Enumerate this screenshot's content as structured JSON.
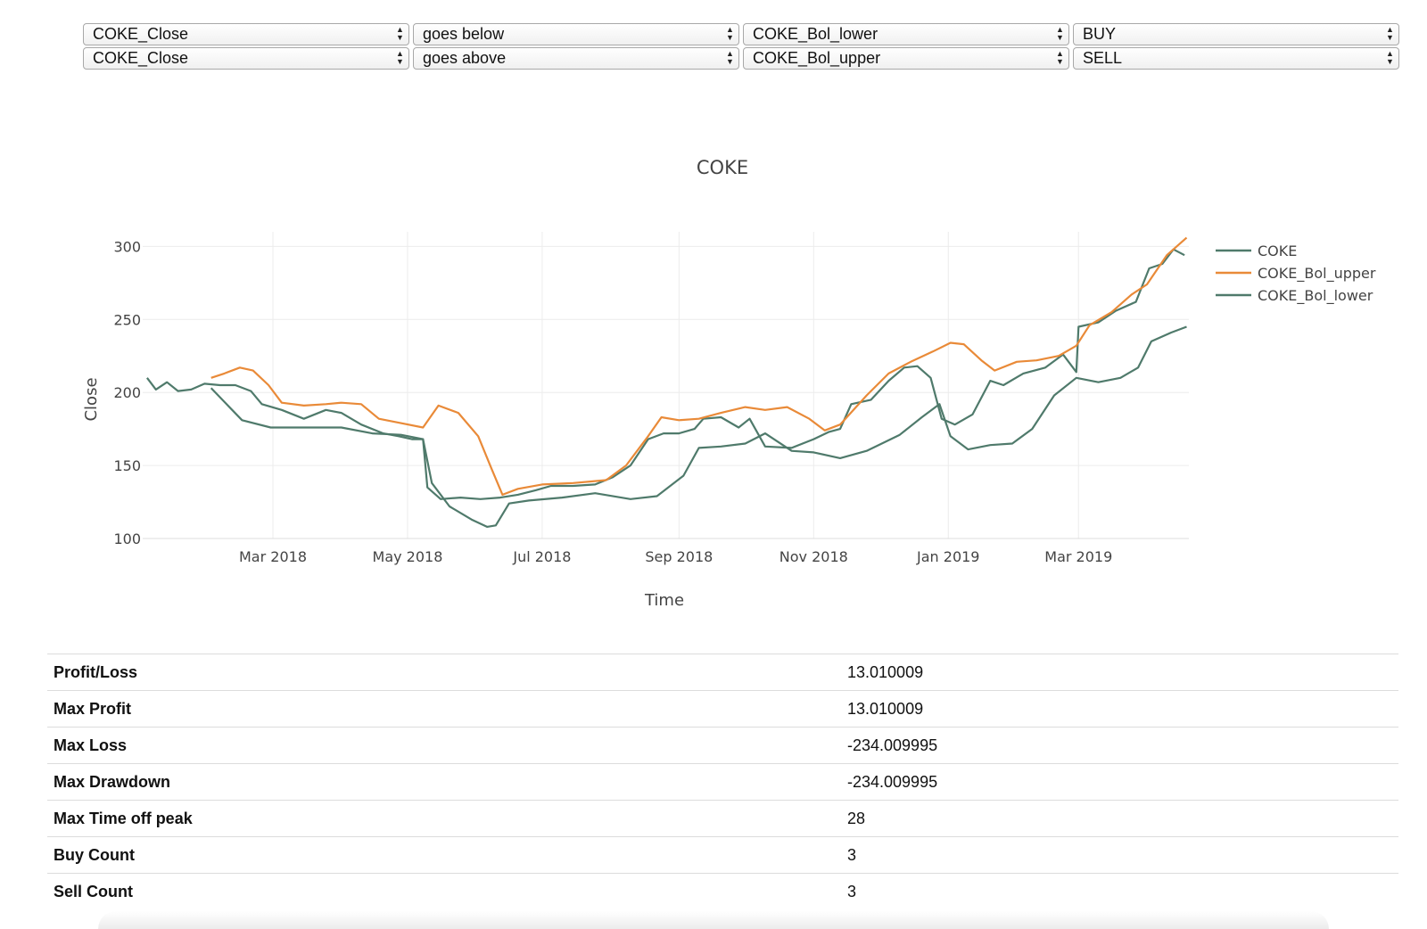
{
  "controls": {
    "rows": [
      [
        "COKE_Close",
        "goes below",
        "COKE_Bol_lower",
        "BUY"
      ],
      [
        "COKE_Close",
        "goes above",
        "COKE_Bol_upper",
        "SELL"
      ]
    ]
  },
  "stats": [
    {
      "label": "Profit/Loss",
      "value": "13.010009"
    },
    {
      "label": "Max Profit",
      "value": "13.010009"
    },
    {
      "label": "Max Loss",
      "value": "-234.009995"
    },
    {
      "label": "Max Drawdown",
      "value": "-234.009995"
    },
    {
      "label": "Max Time off peak",
      "value": "28"
    },
    {
      "label": "Buy Count",
      "value": "3"
    },
    {
      "label": "Sell Count",
      "value": "3"
    }
  ],
  "chart_data": {
    "type": "line",
    "title": "COKE",
    "xlabel": "Time",
    "ylabel": "Close",
    "xlim": [
      "2018-01-01",
      "2019-04-20"
    ],
    "ylim": [
      100,
      310
    ],
    "yticks": [
      100,
      150,
      200,
      250,
      300
    ],
    "xticks": [
      {
        "date": "2018-03-01",
        "label": "Mar 2018"
      },
      {
        "date": "2018-05-01",
        "label": "May 2018"
      },
      {
        "date": "2018-07-01",
        "label": "Jul 2018"
      },
      {
        "date": "2018-09-01",
        "label": "Sep 2018"
      },
      {
        "date": "2018-11-01",
        "label": "Nov 2018"
      },
      {
        "date": "2019-01-01",
        "label": "Jan 2019"
      },
      {
        "date": "2019-03-01",
        "label": "Mar 2019"
      }
    ],
    "grid": true,
    "legend_position": "top-right",
    "series": [
      {
        "name": "COKE",
        "color": "#4f7a6b",
        "points": [
          [
            "2018-01-03",
            210
          ],
          [
            "2018-01-07",
            202
          ],
          [
            "2018-01-12",
            207
          ],
          [
            "2018-01-17",
            201
          ],
          [
            "2018-01-23",
            202
          ],
          [
            "2018-01-29",
            206
          ],
          [
            "2018-02-05",
            205
          ],
          [
            "2018-02-12",
            205
          ],
          [
            "2018-02-19",
            201
          ],
          [
            "2018-02-24",
            192
          ],
          [
            "2018-03-05",
            188
          ],
          [
            "2018-03-15",
            182
          ],
          [
            "2018-03-25",
            188
          ],
          [
            "2018-04-01",
            186
          ],
          [
            "2018-04-10",
            178
          ],
          [
            "2018-04-20",
            172
          ],
          [
            "2018-04-27",
            170
          ],
          [
            "2018-05-03",
            168
          ],
          [
            "2018-05-08",
            168
          ],
          [
            "2018-05-10",
            135
          ],
          [
            "2018-05-16",
            127
          ],
          [
            "2018-05-25",
            128
          ],
          [
            "2018-06-03",
            127
          ],
          [
            "2018-06-12",
            128
          ],
          [
            "2018-06-20",
            130
          ],
          [
            "2018-06-28",
            133
          ],
          [
            "2018-07-05",
            136
          ],
          [
            "2018-07-15",
            136
          ],
          [
            "2018-07-25",
            137
          ],
          [
            "2018-08-02",
            142
          ],
          [
            "2018-08-10",
            150
          ],
          [
            "2018-08-18",
            168
          ],
          [
            "2018-08-25",
            172
          ],
          [
            "2018-09-01",
            172
          ],
          [
            "2018-09-08",
            175
          ],
          [
            "2018-09-12",
            182
          ],
          [
            "2018-09-20",
            183
          ],
          [
            "2018-09-28",
            176
          ],
          [
            "2018-10-03",
            182
          ],
          [
            "2018-10-10",
            163
          ],
          [
            "2018-10-22",
            162
          ],
          [
            "2018-11-01",
            168
          ],
          [
            "2018-11-08",
            173
          ],
          [
            "2018-11-13",
            175
          ],
          [
            "2018-11-18",
            192
          ],
          [
            "2018-11-27",
            195
          ],
          [
            "2018-12-05",
            208
          ],
          [
            "2018-12-12",
            217
          ],
          [
            "2018-12-18",
            218
          ],
          [
            "2018-12-24",
            210
          ],
          [
            "2018-12-29",
            182
          ],
          [
            "2019-01-04",
            178
          ],
          [
            "2019-01-12",
            185
          ],
          [
            "2019-01-20",
            208
          ],
          [
            "2019-01-26",
            205
          ],
          [
            "2019-02-04",
            213
          ],
          [
            "2019-02-14",
            217
          ],
          [
            "2019-02-22",
            226
          ],
          [
            "2019-02-28",
            214
          ],
          [
            "2019-03-01",
            245
          ],
          [
            "2019-03-10",
            248
          ],
          [
            "2019-03-18",
            256
          ],
          [
            "2019-03-27",
            262
          ],
          [
            "2019-04-02",
            285
          ],
          [
            "2019-04-08",
            288
          ],
          [
            "2019-04-13",
            298
          ],
          [
            "2019-04-18",
            294
          ]
        ]
      },
      {
        "name": "COKE_Bol_upper",
        "color": "#e98a38",
        "points": [
          [
            "2018-02-01",
            210
          ],
          [
            "2018-02-07",
            213
          ],
          [
            "2018-02-14",
            217
          ],
          [
            "2018-02-20",
            215
          ],
          [
            "2018-02-27",
            205
          ],
          [
            "2018-03-05",
            193
          ],
          [
            "2018-03-15",
            191
          ],
          [
            "2018-03-25",
            192
          ],
          [
            "2018-04-01",
            193
          ],
          [
            "2018-04-10",
            192
          ],
          [
            "2018-04-18",
            182
          ],
          [
            "2018-04-28",
            179
          ],
          [
            "2018-05-08",
            176
          ],
          [
            "2018-05-15",
            191
          ],
          [
            "2018-05-24",
            186
          ],
          [
            "2018-06-02",
            170
          ],
          [
            "2018-06-08",
            148
          ],
          [
            "2018-06-13",
            130
          ],
          [
            "2018-06-20",
            134
          ],
          [
            "2018-07-01",
            137
          ],
          [
            "2018-07-15",
            138
          ],
          [
            "2018-07-30",
            140
          ],
          [
            "2018-08-08",
            150
          ],
          [
            "2018-08-18",
            170
          ],
          [
            "2018-08-24",
            183
          ],
          [
            "2018-09-01",
            181
          ],
          [
            "2018-09-10",
            182
          ],
          [
            "2018-09-20",
            186
          ],
          [
            "2018-10-01",
            190
          ],
          [
            "2018-10-10",
            188
          ],
          [
            "2018-10-20",
            190
          ],
          [
            "2018-10-30",
            182
          ],
          [
            "2018-11-06",
            174
          ],
          [
            "2018-11-13",
            178
          ],
          [
            "2018-11-25",
            198
          ],
          [
            "2018-12-05",
            213
          ],
          [
            "2018-12-15",
            221
          ],
          [
            "2018-12-25",
            228
          ],
          [
            "2019-01-02",
            234
          ],
          [
            "2019-01-08",
            233
          ],
          [
            "2019-01-16",
            222
          ],
          [
            "2019-01-22",
            215
          ],
          [
            "2019-02-01",
            221
          ],
          [
            "2019-02-10",
            222
          ],
          [
            "2019-02-20",
            225
          ],
          [
            "2019-02-28",
            232
          ],
          [
            "2019-03-06",
            246
          ],
          [
            "2019-03-16",
            255
          ],
          [
            "2019-03-25",
            267
          ],
          [
            "2019-04-01",
            274
          ],
          [
            "2019-04-10",
            294
          ],
          [
            "2019-04-19",
            306
          ]
        ]
      },
      {
        "name": "COKE_Bol_lower",
        "color": "#4f7a6b",
        "points": [
          [
            "2018-02-01",
            203
          ],
          [
            "2018-02-08",
            192
          ],
          [
            "2018-02-15",
            181
          ],
          [
            "2018-02-28",
            176
          ],
          [
            "2018-03-08",
            176
          ],
          [
            "2018-03-20",
            176
          ],
          [
            "2018-04-01",
            176
          ],
          [
            "2018-04-15",
            172
          ],
          [
            "2018-04-28",
            171
          ],
          [
            "2018-05-08",
            168
          ],
          [
            "2018-05-12",
            138
          ],
          [
            "2018-05-20",
            122
          ],
          [
            "2018-05-30",
            113
          ],
          [
            "2018-06-06",
            108
          ],
          [
            "2018-06-10",
            109
          ],
          [
            "2018-06-16",
            124
          ],
          [
            "2018-06-25",
            126
          ],
          [
            "2018-07-10",
            128
          ],
          [
            "2018-07-25",
            131
          ],
          [
            "2018-08-10",
            127
          ],
          [
            "2018-08-22",
            129
          ],
          [
            "2018-09-03",
            143
          ],
          [
            "2018-09-10",
            162
          ],
          [
            "2018-09-20",
            163
          ],
          [
            "2018-10-01",
            165
          ],
          [
            "2018-10-10",
            172
          ],
          [
            "2018-10-22",
            160
          ],
          [
            "2018-11-01",
            159
          ],
          [
            "2018-11-13",
            155
          ],
          [
            "2018-11-25",
            160
          ],
          [
            "2018-12-10",
            171
          ],
          [
            "2018-12-20",
            183
          ],
          [
            "2018-12-28",
            192
          ],
          [
            "2019-01-02",
            170
          ],
          [
            "2019-01-10",
            161
          ],
          [
            "2019-01-20",
            164
          ],
          [
            "2019-01-30",
            165
          ],
          [
            "2019-02-08",
            175
          ],
          [
            "2019-02-18",
            198
          ],
          [
            "2019-02-28",
            210
          ],
          [
            "2019-03-10",
            207
          ],
          [
            "2019-03-20",
            210
          ],
          [
            "2019-03-28",
            217
          ],
          [
            "2019-04-03",
            235
          ],
          [
            "2019-04-12",
            241
          ],
          [
            "2019-04-19",
            245
          ]
        ]
      }
    ]
  }
}
